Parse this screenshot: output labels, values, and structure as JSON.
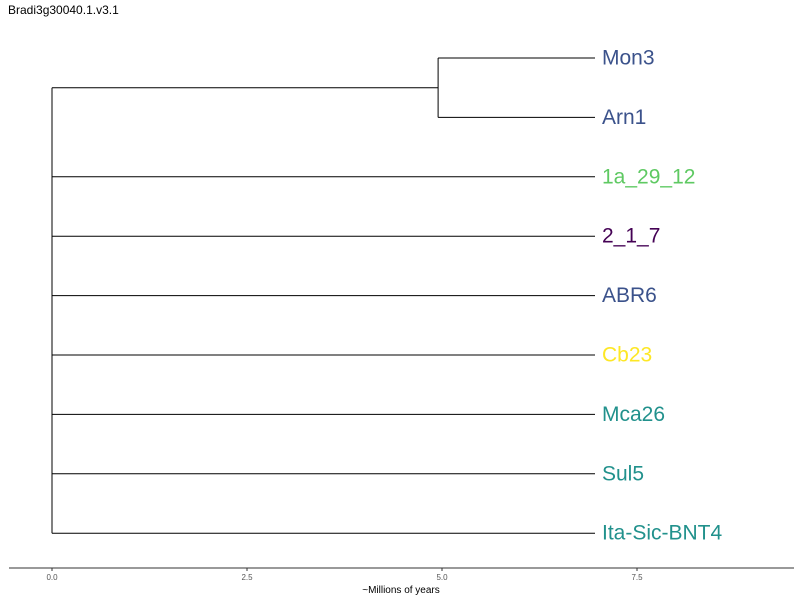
{
  "title": "Bradi3g30040.1.v3.1",
  "axis": {
    "label": "~Millions of years",
    "ticks": [
      "0.0",
      "2.5",
      "5.0",
      "7.5"
    ],
    "tick_values": [
      0,
      2.5,
      5.0,
      7.5
    ],
    "range": [
      -0.55,
      9.5
    ]
  },
  "tree": {
    "tips": [
      {
        "name": "Mon3",
        "color": "#3b528b"
      },
      {
        "name": "Arn1",
        "color": "#3b528b"
      },
      {
        "name": "1a_29_12",
        "color": "#5ec962"
      },
      {
        "name": "2_1_7",
        "color": "#440154"
      },
      {
        "name": "ABR6",
        "color": "#3b528b"
      },
      {
        "name": "Cb23",
        "color": "#fde725"
      },
      {
        "name": "Mca26",
        "color": "#21918c"
      },
      {
        "name": "Sul5",
        "color": "#21918c"
      },
      {
        "name": "Ita-Sic-BNT4",
        "color": "#21918c"
      }
    ],
    "root_depth": 0.0,
    "inner_clade": {
      "members": [
        "Mon3",
        "Arn1"
      ],
      "depth": 4.95
    },
    "tip_depth": 7.0
  }
}
